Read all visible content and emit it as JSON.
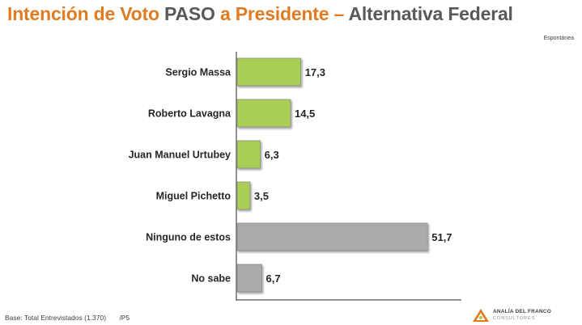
{
  "title": {
    "part1": "Intención de Voto",
    "part2": "PASO",
    "part3": "a Presidente –",
    "part4": "Alternativa Federal"
  },
  "note": "Espontánea",
  "chart_data": {
    "type": "bar",
    "orientation": "horizontal",
    "categories": [
      "Sergio Massa",
      "Roberto Lavagna",
      "Juan Manuel Urtubey",
      "Miguel Pichetto",
      "Ninguno de estos",
      "No sabe"
    ],
    "values": [
      17.3,
      14.5,
      6.3,
      3.5,
      51.7,
      6.7
    ],
    "value_labels": [
      "17,3",
      "14,5",
      "6,3",
      "3,5",
      "51,7",
      "6,7"
    ],
    "bar_colors": [
      "#A9CF54",
      "#A9CF54",
      "#A9CF54",
      "#A9CF54",
      "#ABABAB",
      "#ABABAB"
    ],
    "xlim": [
      0,
      60
    ],
    "grid": false,
    "legend": "none"
  },
  "colors": {
    "title_orange": "#E07B22",
    "title_gray": "#595959",
    "candidate_bar": "#A9CF54",
    "other_bar": "#ABABAB"
  },
  "footer": {
    "base": "Base: Total Entrevistados (1.370)",
    "code": "/P5"
  },
  "logo": {
    "name": "ANALÍA DEL FRANCO",
    "sub": "CONSULTORES",
    "icon": "consultancy-logo-mark"
  }
}
